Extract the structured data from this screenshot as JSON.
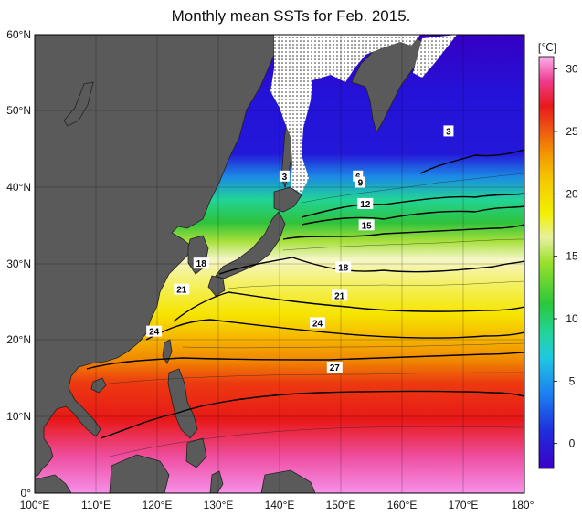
{
  "title": "Monthly mean SSTs for Feb. 2015.",
  "map": {
    "lon_range": [
      100,
      180
    ],
    "lat_range": [
      0,
      60
    ],
    "lon_ticks": [
      "100°E",
      "110°E",
      "120°E",
      "130°E",
      "140°E",
      "150°E",
      "160°E",
      "170°E",
      "180°"
    ],
    "lat_ticks": [
      "0°",
      "10°N",
      "20°N",
      "30°N",
      "40°N",
      "50°N",
      "60°N"
    ],
    "grid": true,
    "land_color": "#5a5a5a",
    "sea_ice_pattern": "dotted white"
  },
  "colorbar": {
    "unit": "[℃]",
    "ticks": [
      "30",
      "25",
      "20",
      "15",
      "10",
      "5",
      "0"
    ],
    "range": [
      -2,
      31
    ],
    "colors": [
      "#3b00c8",
      "#1f2ddc",
      "#1b7ff0",
      "#20c8e0",
      "#22d49a",
      "#2ac83a",
      "#9ae02a",
      "#f2f000",
      "#f5c800",
      "#f39a00",
      "#ef5a10",
      "#e81a1a",
      "#ee3a8a",
      "#f27ad2",
      "#fab0f0"
    ]
  },
  "contour_labels": [
    {
      "text": "3",
      "lon": 140.8,
      "lat": 41.5
    },
    {
      "text": "3",
      "lon": 167.6,
      "lat": 47.4
    },
    {
      "text": "6",
      "lon": 152.8,
      "lat": 41.5
    },
    {
      "text": "9",
      "lon": 153.2,
      "lat": 40.7
    },
    {
      "text": "12",
      "lon": 154.0,
      "lat": 37.9
    },
    {
      "text": "15",
      "lon": 154.2,
      "lat": 35.1
    },
    {
      "text": "18",
      "lon": 127.2,
      "lat": 30.1
    },
    {
      "text": "18",
      "lon": 150.4,
      "lat": 29.6
    },
    {
      "text": "21",
      "lon": 124.0,
      "lat": 26.7
    },
    {
      "text": "21",
      "lon": 149.8,
      "lat": 25.9
    },
    {
      "text": "24",
      "lon": 119.5,
      "lat": 21.2
    },
    {
      "text": "24",
      "lon": 146.2,
      "lat": 22.3
    },
    {
      "text": "27",
      "lon": 149.0,
      "lat": 16.5
    }
  ]
}
